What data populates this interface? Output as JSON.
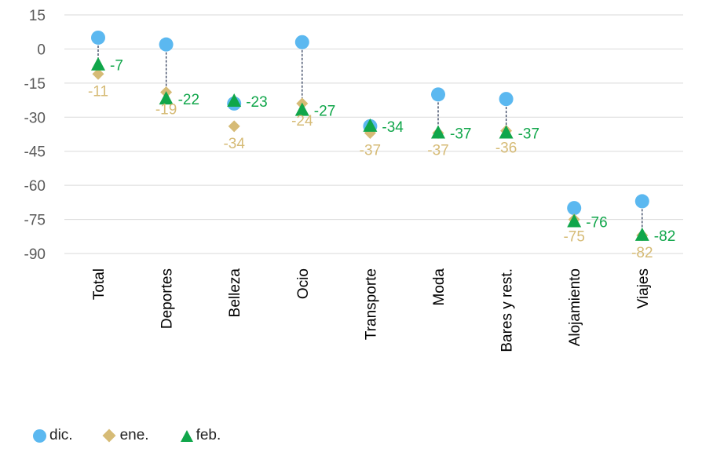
{
  "chart_data": {
    "type": "scatter",
    "categories": [
      "Total",
      "Deportes",
      "Belleza",
      "Ocio",
      "Transporte",
      "Moda",
      "Bares y rest.",
      "Alojamiento",
      "Viajes"
    ],
    "series": [
      {
        "name": "dic.",
        "marker": "circle",
        "color": "#5bb8f0",
        "values": [
          5,
          2,
          -24,
          3,
          -34,
          -20,
          -22,
          -70,
          -67
        ],
        "labels": []
      },
      {
        "name": "ene.",
        "marker": "diamond",
        "color": "#d6bb76",
        "values": [
          -11,
          -19,
          -34,
          -24,
          -37,
          -37,
          -36,
          -75,
          -82
        ],
        "labels": [
          "-11",
          "-19",
          "-34",
          "-24",
          "-37",
          "-37",
          "-36",
          "-75",
          "-82"
        ]
      },
      {
        "name": "feb.",
        "marker": "triangle",
        "color": "#10a64a",
        "values": [
          -7,
          -22,
          -23,
          -27,
          -34,
          -37,
          -37,
          -76,
          -82
        ],
        "labels": [
          "-7",
          "-22",
          "-23",
          "-27",
          "-34",
          "-37",
          "-37",
          "-76",
          "-82"
        ]
      }
    ],
    "yticks": [
      "15",
      "0",
      "-15",
      "-30",
      "-45",
      "-60",
      "-75",
      "-90"
    ],
    "ylim": [
      -90,
      15
    ],
    "ytick_step": 15,
    "grid": true,
    "drop_lines": true,
    "legend_position": "bottom-left",
    "ene_label_color": "#d6bb76",
    "feb_label_color": "#10a64a",
    "axis_text_color": "#000000",
    "tick_text_color": "#595959",
    "grid_color": "#d9d9d9"
  }
}
